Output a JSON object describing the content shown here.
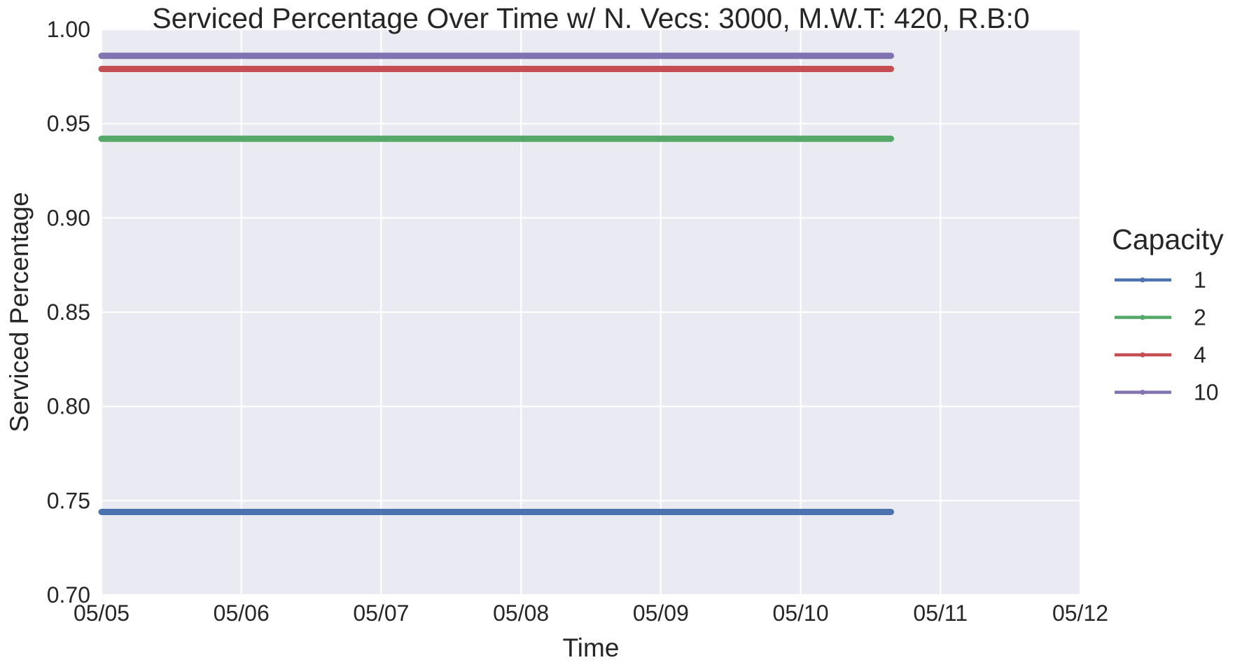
{
  "chart_data": {
    "type": "line",
    "title": "Serviced Percentage Over Time w/ N. Vecs: 3000, M.W.T: 420, R.B:0",
    "xlabel": "Time",
    "ylabel": "Serviced Percentage",
    "x_ticks": [
      "05/05",
      "05/06",
      "05/07",
      "05/08",
      "05/09",
      "05/10",
      "05/11",
      "05/12"
    ],
    "y_ticks": [
      "0.70",
      "0.75",
      "0.80",
      "0.85",
      "0.90",
      "0.95",
      "1.00"
    ],
    "xlim": [
      "05/05 00:00",
      "05/12 00:00"
    ],
    "ylim": [
      0.7,
      1.0
    ],
    "x_range": [
      "05/05 00:00",
      "05/10 15:30"
    ],
    "grid": true,
    "legend_title": "Capacity",
    "legend_position": "right",
    "series": [
      {
        "name": "1",
        "color": "#4c72b0",
        "y": 0.744
      },
      {
        "name": "2",
        "color": "#55a868",
        "y": 0.942
      },
      {
        "name": "4",
        "color": "#c44e52",
        "y": 0.979
      },
      {
        "name": "10",
        "color": "#8172b2",
        "y": 0.986
      }
    ]
  }
}
